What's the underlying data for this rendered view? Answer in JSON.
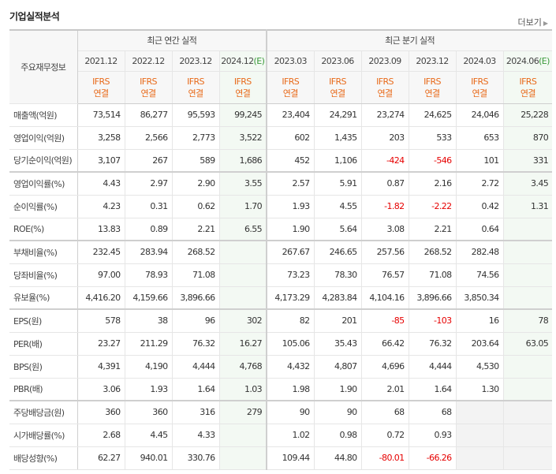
{
  "title": "기업실적분석",
  "more_label": "더보기",
  "header": {
    "row_label": "주요재무정보",
    "annual_group": "최근 연간 실적",
    "quarterly_group": "최근 분기 실적",
    "periods": [
      "2021.12",
      "2022.12",
      "2023.12",
      "2024.12",
      "2023.03",
      "2023.06",
      "2023.09",
      "2023.12",
      "2024.03",
      "2024.06"
    ],
    "estimate_flags": [
      false,
      false,
      false,
      true,
      false,
      false,
      false,
      false,
      false,
      true
    ],
    "estimate_mark": "(E)",
    "basis_line1": "IFRS",
    "basis_line2": "연결"
  },
  "rows": [
    {
      "label": "매출액(억원)",
      "values": [
        "73,514",
        "86,277",
        "95,593",
        "99,245",
        "23,404",
        "24,291",
        "23,274",
        "24,625",
        "24,046",
        "25,228"
      ]
    },
    {
      "label": "영업이익(억원)",
      "values": [
        "3,258",
        "2,566",
        "2,773",
        "3,522",
        "602",
        "1,435",
        "203",
        "533",
        "653",
        "870"
      ]
    },
    {
      "label": "당기순이익(억원)",
      "values": [
        "3,107",
        "267",
        "589",
        "1,686",
        "452",
        "1,106",
        "-424",
        "-546",
        "101",
        "331"
      ]
    },
    {
      "label": "영업이익률(%)",
      "values": [
        "4.43",
        "2.97",
        "2.90",
        "3.55",
        "2.57",
        "5.91",
        "0.87",
        "2.16",
        "2.72",
        "3.45"
      ]
    },
    {
      "label": "순이익률(%)",
      "values": [
        "4.23",
        "0.31",
        "0.62",
        "1.70",
        "1.93",
        "4.55",
        "-1.82",
        "-2.22",
        "0.42",
        "1.31"
      ]
    },
    {
      "label": "ROE(%)",
      "values": [
        "13.83",
        "0.89",
        "2.21",
        "6.55",
        "1.90",
        "5.64",
        "3.08",
        "2.21",
        "0.64",
        ""
      ]
    },
    {
      "label": "부채비율(%)",
      "values": [
        "232.45",
        "283.94",
        "268.52",
        "",
        "267.67",
        "246.65",
        "257.56",
        "268.52",
        "282.48",
        ""
      ]
    },
    {
      "label": "당좌비율(%)",
      "values": [
        "97.00",
        "78.93",
        "71.08",
        "",
        "73.23",
        "78.30",
        "76.57",
        "71.08",
        "74.56",
        ""
      ]
    },
    {
      "label": "유보율(%)",
      "values": [
        "4,416.20",
        "4,159.66",
        "3,896.66",
        "",
        "4,173.29",
        "4,283.84",
        "4,104.16",
        "3,896.66",
        "3,850.34",
        ""
      ]
    },
    {
      "label": "EPS(원)",
      "values": [
        "578",
        "38",
        "96",
        "302",
        "82",
        "201",
        "-85",
        "-103",
        "16",
        "78"
      ]
    },
    {
      "label": "PER(배)",
      "values": [
        "23.27",
        "211.29",
        "76.32",
        "16.27",
        "105.06",
        "35.43",
        "66.42",
        "76.32",
        "203.64",
        "63.05"
      ]
    },
    {
      "label": "BPS(원)",
      "values": [
        "4,391",
        "4,190",
        "4,444",
        "4,768",
        "4,432",
        "4,807",
        "4,696",
        "4,444",
        "4,530",
        ""
      ]
    },
    {
      "label": "PBR(배)",
      "values": [
        "3.06",
        "1.93",
        "1.64",
        "1.03",
        "1.98",
        "1.90",
        "2.01",
        "1.64",
        "1.30",
        ""
      ]
    },
    {
      "label": "주당배당금(원)",
      "values": [
        "360",
        "360",
        "316",
        "279",
        "90",
        "90",
        "68",
        "68",
        "",
        ""
      ]
    },
    {
      "label": "시가배당률(%)",
      "values": [
        "2.68",
        "4.45",
        "4.33",
        "",
        "1.02",
        "0.98",
        "0.72",
        "0.93",
        "",
        ""
      ]
    },
    {
      "label": "배당성향(%)",
      "values": [
        "62.27",
        "940.01",
        "330.76",
        "",
        "109.44",
        "44.80",
        "-80.01",
        "-66.26",
        "",
        ""
      ]
    }
  ],
  "colors": {
    "negative": "#e60000",
    "basis": "#e86a1a",
    "estimate": "#3a9a3a"
  }
}
